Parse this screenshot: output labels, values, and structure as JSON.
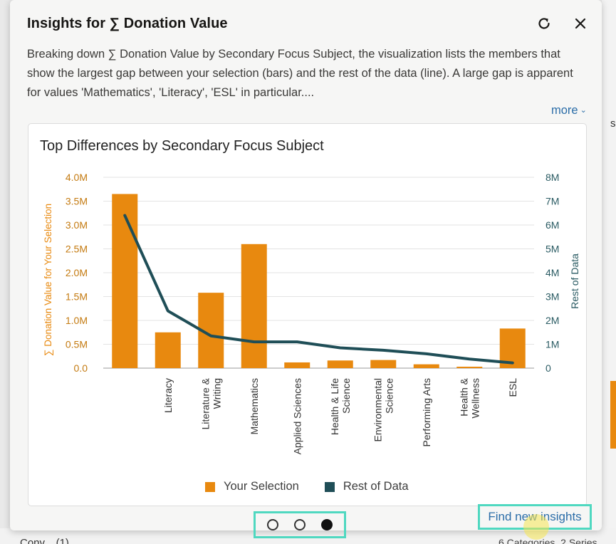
{
  "panel": {
    "title": "Insights for ∑ Donation Value",
    "description": "Breaking down ∑ Donation Value by Secondary Focus Subject, the visualization lists the members that show the largest gap between your selection (bars) and the rest of the data (line). A large gap is apparent for values 'Mathematics', 'Literacy', 'ESL' in particular....",
    "more_label": "more",
    "refresh_icon": "refresh-icon",
    "close_icon": "close-icon"
  },
  "pagination": {
    "pages": 3,
    "active_index": 2
  },
  "footer": {
    "find_label": "Find new insights"
  },
  "background": {
    "right_text": "s",
    "bottom_left": "Conv... (1)",
    "bottom_right": "6 Categories, 2 Series"
  },
  "colors": {
    "bar": "#e8890f",
    "line": "#1f4e57",
    "link": "#2b6da8",
    "highlight": "#4fd8c0"
  },
  "chart_data": {
    "type": "bar",
    "title": "Top Differences by Secondary Focus Subject",
    "categories": [
      "",
      "Literacy",
      "Literature &\nWriting",
      "Mathematics",
      "Applied Sciences",
      "Health & Life\nScience",
      "Environmental\nScience",
      "Performing Arts",
      "Health &\nWellness",
      "ESL"
    ],
    "series": [
      {
        "name": "Your Selection",
        "type": "bar",
        "axis": "left",
        "values": [
          3.65,
          0.75,
          1.58,
          2.6,
          0.12,
          0.16,
          0.17,
          0.08,
          0.03,
          0.83
        ]
      },
      {
        "name": "Rest of Data",
        "type": "line",
        "axis": "right",
        "values": [
          6.4,
          2.4,
          1.35,
          1.1,
          1.1,
          0.85,
          0.75,
          0.6,
          0.38,
          0.22
        ]
      }
    ],
    "ylabel": "∑ Donation Value for Your Selection",
    "y2label": "Rest of Data",
    "ylim": [
      0,
      4.0
    ],
    "y2lim": [
      0,
      8
    ],
    "yticks": [
      "0.0",
      "0.5M",
      "1.0M",
      "1.5M",
      "2.0M",
      "2.5M",
      "3.0M",
      "3.5M",
      "4.0M"
    ],
    "y2ticks": [
      "0",
      "1M",
      "2M",
      "3M",
      "4M",
      "5M",
      "6M",
      "7M",
      "8M"
    ],
    "grid": true,
    "legend": "bottom"
  }
}
